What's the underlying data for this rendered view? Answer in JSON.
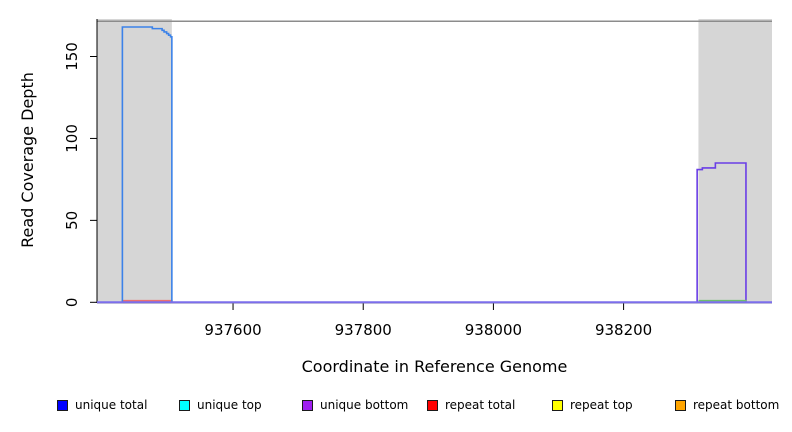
{
  "figure": {
    "background": "#ffffff"
  },
  "chart_data": {
    "type": "line",
    "title": "",
    "xlabel": "Coordinate in Reference Genome",
    "ylabel": "Read Coverage Depth",
    "xlim": [
      937391,
      938428
    ],
    "ylim": [
      0,
      173
    ],
    "x_ticks": [
      937600,
      937800,
      938000,
      938200
    ],
    "y_ticks": [
      0,
      50,
      100,
      150
    ],
    "grid": "off",
    "legend_position": "bottom",
    "shaded_regions": [
      {
        "x0": 937391,
        "x1": 937506,
        "color": "#d6d6d6"
      },
      {
        "x0": 938315,
        "x1": 938428,
        "color": "#d6d6d6"
      }
    ],
    "top_reference_line": {
      "y": 171.5,
      "color": "#8c8c8c"
    },
    "baseline": {
      "y": 0,
      "color": "#7b6eeb"
    },
    "series": [
      {
        "name": "unique total",
        "line_color": "#3b82e9",
        "points": [
          [
            937391,
            0
          ],
          [
            937430,
            0
          ],
          [
            937430,
            168
          ],
          [
            937476,
            168
          ],
          [
            937476,
            167
          ],
          [
            937491,
            167
          ],
          [
            937491,
            166
          ],
          [
            937494,
            166
          ],
          [
            937494,
            165
          ],
          [
            937498,
            165
          ],
          [
            937498,
            164
          ],
          [
            937501,
            164
          ],
          [
            937501,
            163
          ],
          [
            937504,
            163
          ],
          [
            937504,
            162
          ],
          [
            937506,
            162
          ],
          [
            937506,
            0
          ],
          [
            938428,
            0
          ]
        ]
      },
      {
        "name": "unique top",
        "line_color": "#00ffff",
        "points": [
          [
            937391,
            0
          ],
          [
            938428,
            0
          ]
        ]
      },
      {
        "name": "unique bottom",
        "line_color": "#6a3ee6",
        "points": [
          [
            937391,
            0
          ],
          [
            938313,
            0
          ],
          [
            938313,
            81
          ],
          [
            938321,
            81
          ],
          [
            938321,
            82
          ],
          [
            938341,
            82
          ],
          [
            938341,
            85
          ],
          [
            938388,
            85
          ],
          [
            938388,
            0
          ],
          [
            938428,
            0
          ]
        ]
      },
      {
        "name": "repeat total",
        "line_color": "#ec7070",
        "points": [
          [
            937391,
            0
          ],
          [
            937430,
            0
          ],
          [
            937430,
            1
          ],
          [
            937506,
            1
          ],
          [
            937506,
            0
          ],
          [
            938428,
            0
          ]
        ]
      },
      {
        "name": "repeat top",
        "line_color": "#ffff00",
        "points": [
          [
            937391,
            0
          ],
          [
            938428,
            0
          ]
        ]
      },
      {
        "name": "repeat bottom",
        "line_color": "#ffa500",
        "points": [
          [
            937391,
            0
          ],
          [
            938428,
            0
          ]
        ]
      }
    ],
    "overlap_segment": {
      "x0": 938315,
      "x1": 938389,
      "y": 1,
      "color": "#6ebe6e"
    }
  },
  "legend": {
    "items": [
      {
        "label": "unique total",
        "swatch_color": "#0000ff"
      },
      {
        "label": "unique top",
        "swatch_color": "#00ffff"
      },
      {
        "label": "unique bottom",
        "swatch_color": "#a020f0"
      },
      {
        "label": "repeat total",
        "swatch_color": "#ff0000"
      },
      {
        "label": "repeat top",
        "swatch_color": "#ffff00"
      },
      {
        "label": "repeat bottom",
        "swatch_color": "#ffa500"
      }
    ]
  }
}
